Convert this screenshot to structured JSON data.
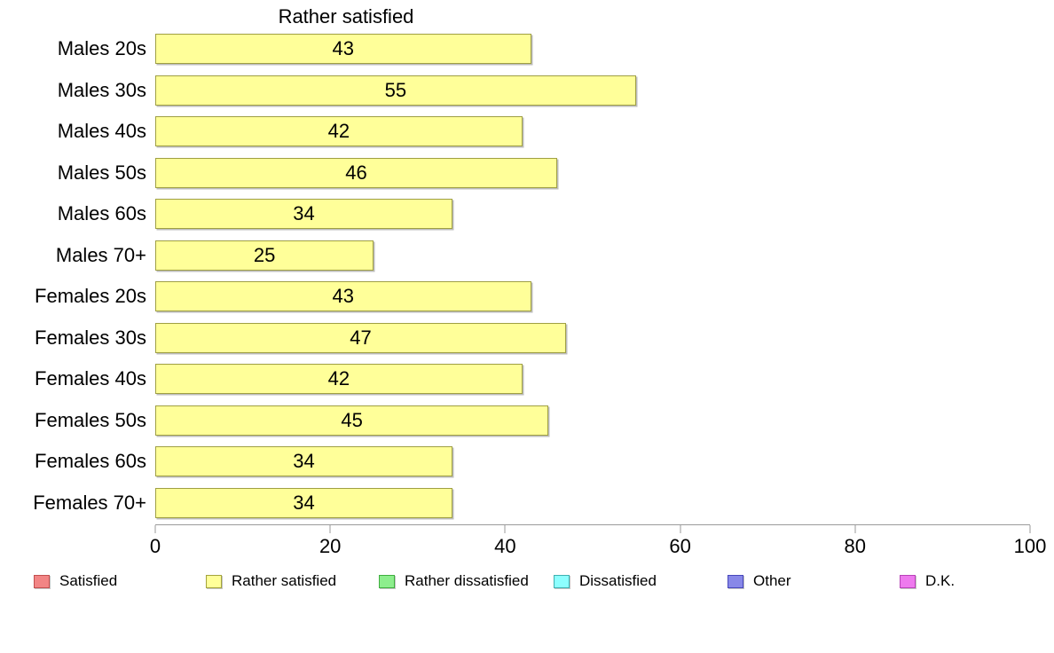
{
  "chart_data": {
    "type": "bar",
    "orientation": "horizontal",
    "title": "Rather satisfied",
    "categories": [
      "Males 20s",
      "Males 30s",
      "Males 40s",
      "Males 50s",
      "Males 60s",
      "Males 70+",
      "Females 20s",
      "Females 30s",
      "Females 40s",
      "Females 50s",
      "Females 60s",
      "Females 70+"
    ],
    "values": [
      43,
      55,
      42,
      46,
      34,
      25,
      43,
      47,
      42,
      45,
      34,
      34
    ],
    "value_labels_shown": true,
    "xlabel": "",
    "ylabel": "",
    "xlim": [
      0,
      100
    ],
    "x_ticks": [
      0,
      20,
      40,
      60,
      80,
      100
    ],
    "grid": false,
    "bar_color": "#ffff99",
    "bar_border_color": "#9f9f43",
    "legend": {
      "position": "bottom",
      "entries": [
        {
          "label": "Satisfied",
          "color": "#f28585",
          "border": "#c24f4f"
        },
        {
          "label": "Rather satisfied",
          "color": "#ffff99",
          "border": "#a3a33c"
        },
        {
          "label": "Rather dissatisfied",
          "color": "#8dee8d",
          "border": "#3fae3f"
        },
        {
          "label": "Dissatisfied",
          "color": "#8dffff",
          "border": "#3fb0b0"
        },
        {
          "label": "Other",
          "color": "#8888e8",
          "border": "#4747bb"
        },
        {
          "label": "D.K.",
          "color": "#ee7aee",
          "border": "#b842b8"
        }
      ]
    }
  }
}
